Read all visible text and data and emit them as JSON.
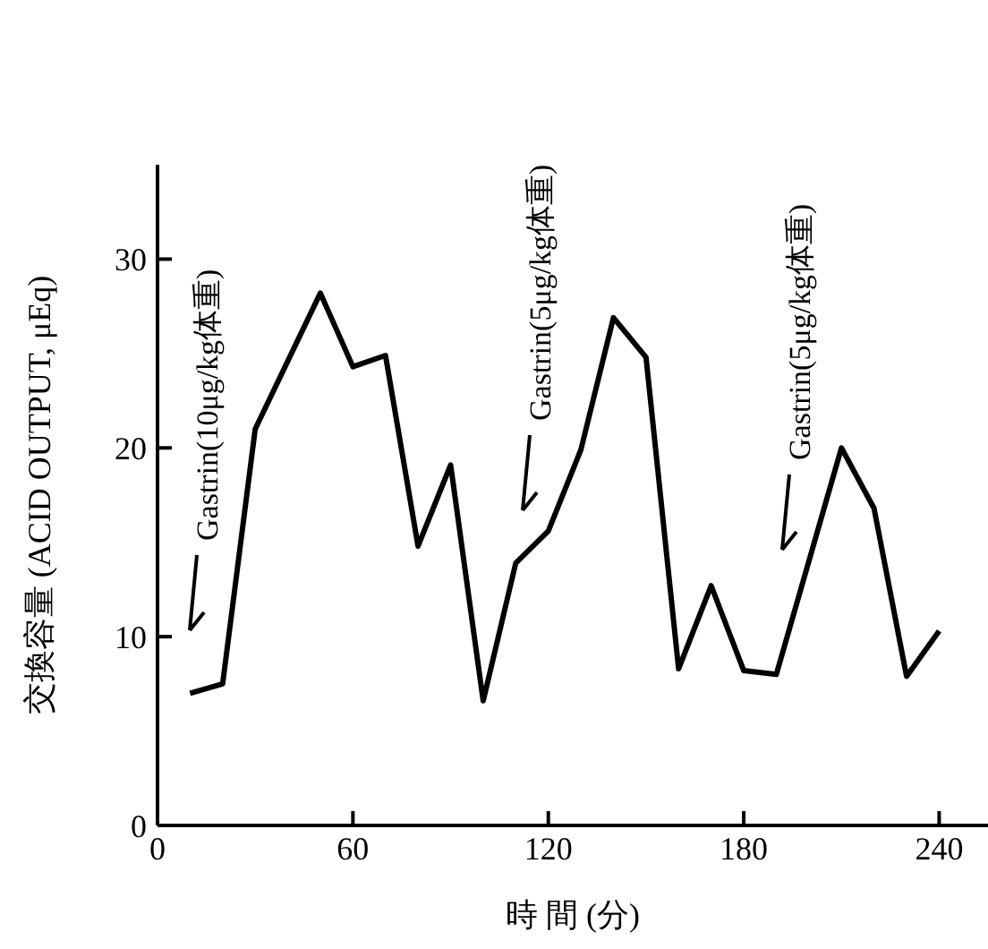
{
  "chart_data": {
    "type": "line",
    "xlabel": "時 間 (分)",
    "ylabel": "交換容量 (ACID OUTPUT, μEq)",
    "x": [
      10,
      20,
      30,
      50,
      60,
      70,
      80,
      90,
      100,
      110,
      120,
      130,
      140,
      150,
      160,
      170,
      180,
      190,
      210,
      220,
      230,
      240
    ],
    "series": [
      {
        "color": "#000000",
        "values": [
          7,
          7.5,
          21,
          28.2,
          24.3,
          24.9,
          14.8,
          19.1,
          6.6,
          13.9,
          15.6,
          19.9,
          26.9,
          24.8,
          8.3,
          12.7,
          8.2,
          8,
          20,
          16.8,
          7.9,
          10.3
        ]
      }
    ],
    "xlim": [
      0,
      255
    ],
    "xticks": [
      0,
      60,
      120,
      180,
      240
    ],
    "ylim": [
      0,
      35
    ],
    "yticks": [
      0,
      10,
      20,
      30
    ],
    "grid": false,
    "legend": false,
    "marker": "none",
    "line_style": "solid",
    "annotations": [
      "Gastrin(10μg/kg体重)",
      "Gastrin(5μg/kg体重)",
      "Gastrin(5μg/kg体重)"
    ]
  }
}
